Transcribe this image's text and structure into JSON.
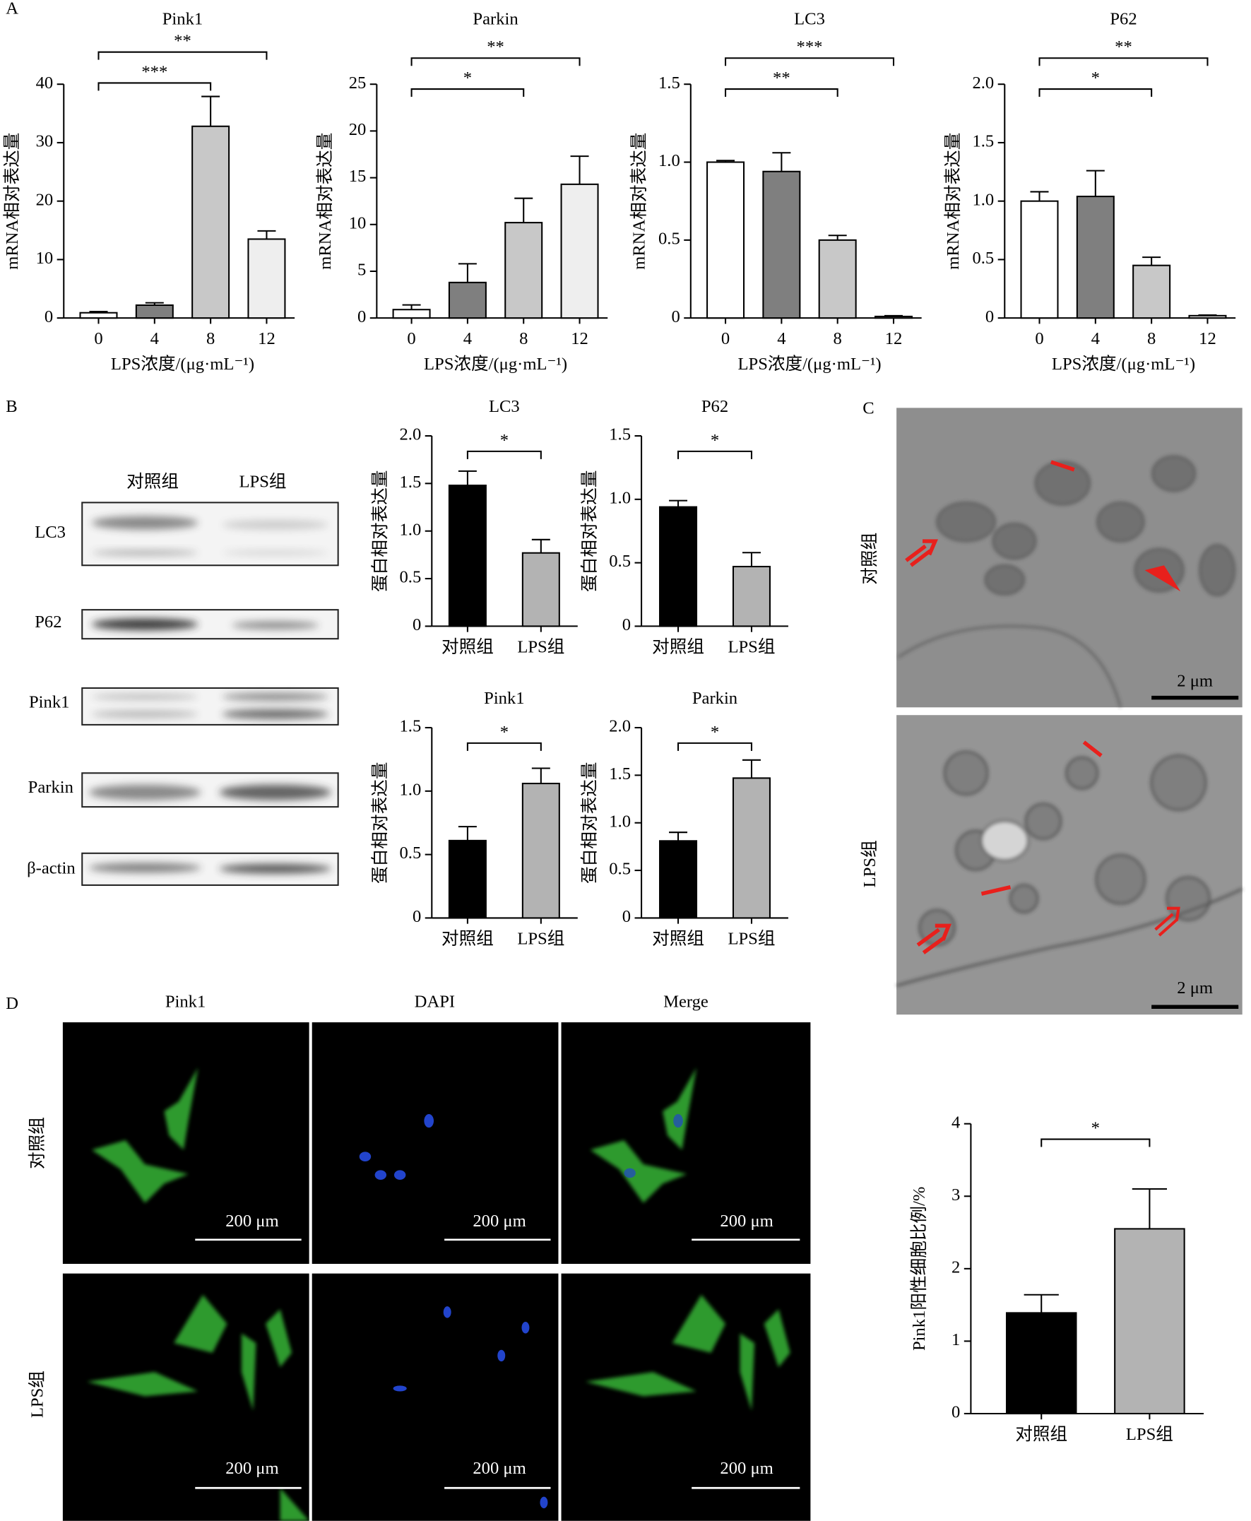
{
  "chart_data": [
    {
      "type": "bar",
      "title": "Pink1",
      "y_label": "mRNA相对表达量",
      "x_label": "LPS浓度/(μg·mL⁻¹)",
      "categories": [
        "0",
        "4",
        "8",
        "12"
      ],
      "values": [
        0.9,
        2.2,
        32.8,
        13.5
      ],
      "errors": [
        0.2,
        0.4,
        5.1,
        1.4
      ],
      "colors": [
        "#ffffff",
        "#7f7f7f",
        "#c8c8c8",
        "#eeeeee"
      ],
      "ylim": [
        0,
        40
      ],
      "yticks": [
        0,
        10,
        20,
        30,
        40
      ],
      "significance": [
        {
          "between": [
            0,
            2
          ],
          "text": "***"
        },
        {
          "between": [
            0,
            3
          ],
          "text": "**"
        }
      ]
    },
    {
      "type": "bar",
      "title": "Parkin",
      "y_label": "mRNA相对表达量",
      "x_label": "LPS浓度/(μg·mL⁻¹)",
      "categories": [
        "0",
        "4",
        "8",
        "12"
      ],
      "values": [
        0.9,
        3.8,
        10.2,
        14.3
      ],
      "errors": [
        0.5,
        2.0,
        2.6,
        3.0
      ],
      "colors": [
        "#ffffff",
        "#7f7f7f",
        "#c8c8c8",
        "#eeeeee"
      ],
      "ylim": [
        0,
        25
      ],
      "yticks": [
        0,
        5,
        10,
        15,
        20,
        25
      ],
      "significance": [
        {
          "between": [
            0,
            2
          ],
          "text": "*"
        },
        {
          "between": [
            0,
            3
          ],
          "text": "**"
        }
      ]
    },
    {
      "type": "bar",
      "title": "LC3",
      "y_label": "mRNA相对表达量",
      "x_label": "LPS浓度/(μg·mL⁻¹)",
      "categories": [
        "0",
        "4",
        "8",
        "12"
      ],
      "values": [
        1.0,
        0.94,
        0.5,
        0.01
      ],
      "errors": [
        0.01,
        0.12,
        0.03,
        0.005
      ],
      "colors": [
        "#ffffff",
        "#7f7f7f",
        "#c8c8c8",
        "#eeeeee"
      ],
      "ylim": [
        0,
        1.5
      ],
      "yticks": [
        0,
        0.5,
        {
          "value": 1,
          "label": "1.0"
        },
        1.5
      ],
      "significance": [
        {
          "between": [
            0,
            2
          ],
          "text": "**"
        },
        {
          "between": [
            0,
            3
          ],
          "text": "***"
        }
      ]
    },
    {
      "type": "bar",
      "title": "P62",
      "y_label": "mRNA相对表达量",
      "x_label": "LPS浓度/(μg·mL⁻¹)",
      "categories": [
        "0",
        "4",
        "8",
        "12"
      ],
      "values": [
        1.0,
        1.04,
        0.45,
        0.02
      ],
      "errors": [
        0.08,
        0.22,
        0.07,
        0.005
      ],
      "colors": [
        "#ffffff",
        "#7f7f7f",
        "#c8c8c8",
        "#eeeeee"
      ],
      "ylim": [
        0,
        2
      ],
      "yticks": [
        0,
        0.5,
        {
          "value": 1,
          "label": "1.0"
        },
        1.5,
        {
          "value": 2,
          "label": "2.0"
        }
      ],
      "significance": [
        {
          "between": [
            0,
            2
          ],
          "text": "*"
        },
        {
          "between": [
            0,
            3
          ],
          "text": "**"
        }
      ]
    },
    {
      "type": "bar",
      "title": "LC3",
      "y_label": "蛋白相对表达量",
      "categories": [
        "对照组",
        "LPS组"
      ],
      "values": [
        1.48,
        0.77
      ],
      "errors": [
        0.15,
        0.14
      ],
      "colors": [
        "#000000",
        "#b3b3b3"
      ],
      "ylim": [
        0,
        2
      ],
      "yticks": [
        0,
        0.5,
        {
          "value": 1,
          "label": "1.0"
        },
        1.5,
        {
          "value": 2,
          "label": "2.0"
        }
      ],
      "significance": [
        {
          "between": [
            0,
            1
          ],
          "text": "*"
        }
      ]
    },
    {
      "type": "bar",
      "title": "P62",
      "y_label": "蛋白相对表达量",
      "categories": [
        "对照组",
        "LPS组"
      ],
      "values": [
        0.94,
        0.47
      ],
      "errors": [
        0.05,
        0.11
      ],
      "colors": [
        "#000000",
        "#b3b3b3"
      ],
      "ylim": [
        0,
        1.5
      ],
      "yticks": [
        0,
        0.5,
        {
          "value": 1,
          "label": "1.0"
        },
        1.5
      ],
      "significance": [
        {
          "between": [
            0,
            1
          ],
          "text": "*"
        }
      ]
    },
    {
      "type": "bar",
      "title": "Pink1",
      "y_label": "蛋白相对表达量",
      "categories": [
        "对照组",
        "LPS组"
      ],
      "values": [
        0.61,
        1.06
      ],
      "errors": [
        0.11,
        0.12
      ],
      "colors": [
        "#000000",
        "#b3b3b3"
      ],
      "ylim": [
        0,
        1.5
      ],
      "yticks": [
        0,
        0.5,
        {
          "value": 1,
          "label": "1.0"
        },
        1.5
      ],
      "significance": [
        {
          "between": [
            0,
            1
          ],
          "text": "*"
        }
      ]
    },
    {
      "type": "bar",
      "title": "Parkin",
      "y_label": "蛋白相对表达量",
      "categories": [
        "对照组",
        "LPS组"
      ],
      "values": [
        0.81,
        1.47
      ],
      "errors": [
        0.09,
        0.19
      ],
      "colors": [
        "#000000",
        "#b3b3b3"
      ],
      "ylim": [
        0,
        2
      ],
      "yticks": [
        0,
        0.5,
        {
          "value": 1,
          "label": "1.0"
        },
        1.5,
        {
          "value": 2,
          "label": "2.0"
        }
      ],
      "significance": [
        {
          "between": [
            0,
            1
          ],
          "text": "*"
        }
      ]
    },
    {
      "type": "bar",
      "y_label": "Pink1阳性细胞比例/%",
      "categories": [
        "对照组",
        "LPS组"
      ],
      "values": [
        1.39,
        2.55
      ],
      "errors": [
        0.25,
        0.55
      ],
      "colors": [
        "#000000",
        "#b3b3b3"
      ],
      "ylim": [
        0,
        4
      ],
      "yticks": [
        0,
        1,
        2,
        3,
        4
      ],
      "significance": [
        {
          "between": [
            0,
            1
          ],
          "text": "*"
        }
      ]
    }
  ],
  "figure": {
    "panel_labels": [
      "A",
      "B",
      "C",
      "D"
    ],
    "blot": {
      "groups": [
        "对照组",
        "LPS组"
      ],
      "proteins": [
        "LC3",
        "P62",
        "Pink1",
        "Parkin",
        "β-actin"
      ]
    },
    "em": {
      "groups": [
        "对照组",
        "LPS组"
      ],
      "scale_bar": "2 μm"
    },
    "fluorescence": {
      "channels": [
        "Pink1",
        "DAPI",
        "Merge"
      ],
      "groups": [
        "对照组",
        "LPS组"
      ],
      "scale_bar": "200 μm"
    }
  }
}
